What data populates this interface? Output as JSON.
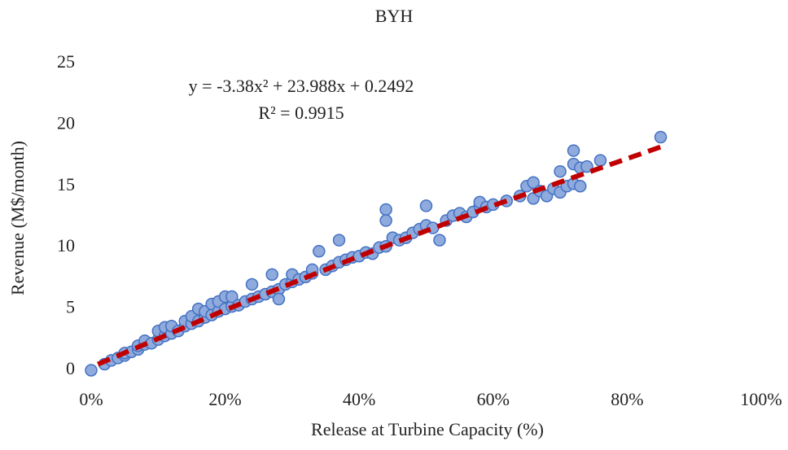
{
  "chart_data": {
    "type": "scatter",
    "title": "BYH",
    "xlabel": "Release at Turbine Capacity (%)",
    "ylabel": "Revenue (M$/month)",
    "annotations": [
      "y = -3.38x² + 23.988x + 0.2492",
      "R² = 0.9915"
    ],
    "xlim": [
      0,
      100
    ],
    "xticks": [
      {
        "value": 0,
        "label": "0%"
      },
      {
        "value": 20,
        "label": "20%"
      },
      {
        "value": 40,
        "label": "40%"
      },
      {
        "value": 60,
        "label": "60%"
      },
      {
        "value": 80,
        "label": "80%"
      },
      {
        "value": 100,
        "label": "100%"
      }
    ],
    "ylim": [
      0,
      25
    ],
    "yticks": [
      0,
      5,
      10,
      15,
      20,
      25
    ],
    "grid": false,
    "series": [
      {
        "type": "scatter",
        "color": "#8faadc",
        "edgecolor": "#4472c4",
        "x": [
          0,
          2,
          3,
          4,
          5,
          5,
          6,
          7,
          7,
          8,
          8,
          9,
          10,
          10,
          11,
          11,
          12,
          12,
          13,
          14,
          14,
          15,
          15,
          16,
          16,
          17,
          17,
          18,
          18,
          19,
          19,
          20,
          20,
          21,
          21,
          22,
          23,
          24,
          24,
          25,
          26,
          27,
          27,
          28,
          28,
          29,
          30,
          30,
          31,
          32,
          33,
          33,
          34,
          35,
          36,
          37,
          37,
          38,
          39,
          40,
          41,
          42,
          43,
          44,
          44,
          44,
          45,
          46,
          47,
          48,
          49,
          50,
          50,
          51,
          52,
          53,
          54,
          55,
          56,
          57,
          58,
          58,
          59,
          60,
          62,
          64,
          65,
          66,
          66,
          67,
          68,
          69,
          70,
          70,
          71,
          72,
          72,
          72,
          73,
          73,
          74,
          76,
          85
        ],
        "values": [
          0,
          0.5,
          0.8,
          1.0,
          1.2,
          1.4,
          1.5,
          1.7,
          2.0,
          2.1,
          2.4,
          2.2,
          2.5,
          3.2,
          2.8,
          3.5,
          3.0,
          3.6,
          3.2,
          3.6,
          4.0,
          3.8,
          4.4,
          4.0,
          5.0,
          4.3,
          4.8,
          4.5,
          5.4,
          4.8,
          5.6,
          5.0,
          6.0,
          5.2,
          6.0,
          5.3,
          5.6,
          5.8,
          7.0,
          6.0,
          6.2,
          6.4,
          7.8,
          6.6,
          5.8,
          7.0,
          7.2,
          7.8,
          7.4,
          7.6,
          7.9,
          8.2,
          9.7,
          8.2,
          8.5,
          8.8,
          10.6,
          9.0,
          9.2,
          9.3,
          9.6,
          9.5,
          10.0,
          10.1,
          13.1,
          12.2,
          10.8,
          10.6,
          10.8,
          11.2,
          11.5,
          11.8,
          13.4,
          11.6,
          10.6,
          12.2,
          12.6,
          12.8,
          12.5,
          12.9,
          13.4,
          13.7,
          13.3,
          13.5,
          13.8,
          14.2,
          15.0,
          15.3,
          14.0,
          14.6,
          14.2,
          14.8,
          14.5,
          16.2,
          15.0,
          15.2,
          17.9,
          16.8,
          15.0,
          16.5,
          16.6,
          17.1,
          19.0
        ]
      },
      {
        "type": "line",
        "color": "#c00000",
        "dashed": true,
        "x": [
          1,
          20,
          40,
          60,
          85
        ],
        "values": [
          0.49,
          4.91,
          9.3,
          13.42,
          18.2
        ]
      }
    ]
  }
}
